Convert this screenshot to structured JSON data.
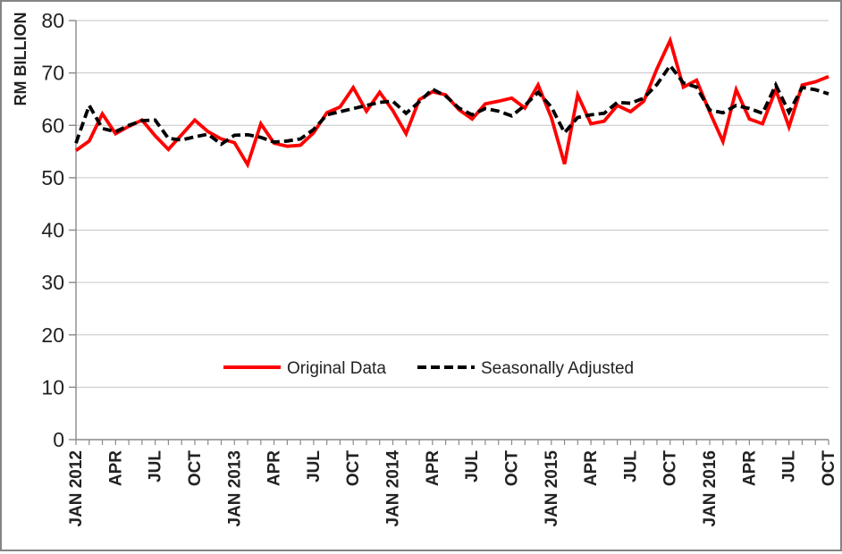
{
  "chart_data": {
    "type": "line",
    "title": "",
    "xlabel": "",
    "ylabel": "RM BILLION",
    "ylim": [
      0,
      80
    ],
    "ytick_interval": 10,
    "yticks": [
      0,
      10,
      20,
      30,
      40,
      50,
      60,
      70,
      80
    ],
    "grid": "horizontal-gridlines-on",
    "legend_position": "inside-bottom-center",
    "x_visible_tick_labels": [
      "JAN 2012",
      "APR",
      "JUL",
      "OCT",
      "JAN 2013",
      "APR",
      "JUL",
      "OCT",
      "JAN 2014",
      "APR",
      "JUL",
      "OCT",
      "JAN 2015",
      "APR",
      "JUL",
      "OCT",
      "JAN 2016",
      "APR",
      "JUL",
      "OCT"
    ],
    "x_label_every_n_months": 3,
    "categories": [
      "JAN 2012",
      "FEB 2012",
      "MAR 2012",
      "APR 2012",
      "MAY 2012",
      "JUN 2012",
      "JUL 2012",
      "AUG 2012",
      "SEP 2012",
      "OCT 2012",
      "NOV 2012",
      "DEC 2012",
      "JAN 2013",
      "FEB 2013",
      "MAR 2013",
      "APR 2013",
      "MAY 2013",
      "JUN 2013",
      "JUL 2013",
      "AUG 2013",
      "SEP 2013",
      "OCT 2013",
      "NOV 2013",
      "DEC 2013",
      "JAN 2014",
      "FEB 2014",
      "MAR 2014",
      "APR 2014",
      "MAY 2014",
      "JUN 2014",
      "JUL 2014",
      "AUG 2014",
      "SEP 2014",
      "OCT 2014",
      "NOV 2014",
      "DEC 2014",
      "JAN 2015",
      "FEB 2015",
      "MAR 2015",
      "APR 2015",
      "MAY 2015",
      "JUN 2015",
      "JUL 2015",
      "AUG 2015",
      "SEP 2015",
      "OCT 2015",
      "NOV 2015",
      "DEC 2015",
      "JAN 2016",
      "FEB 2016",
      "MAR 2016",
      "APR 2016",
      "MAY 2016",
      "JUN 2016",
      "JUL 2016",
      "AUG 2016",
      "SEP 2016",
      "OCT 2016"
    ],
    "series": [
      {
        "name": "Original Data",
        "color": "#FF0000",
        "style": "solid",
        "values": [
          55.2,
          57.0,
          62.2,
          58.4,
          59.8,
          61.0,
          58.0,
          55.4,
          58.2,
          61.0,
          58.8,
          57.4,
          56.7,
          52.5,
          60.3,
          56.6,
          56.0,
          56.2,
          58.6,
          62.4,
          63.5,
          67.2,
          62.7,
          66.3,
          62.8,
          58.4,
          64.9,
          66.4,
          65.8,
          63.0,
          61.2,
          64.1,
          64.6,
          65.2,
          63.3,
          67.7,
          61.5,
          52.6,
          65.8,
          60.3,
          60.8,
          63.8,
          62.6,
          64.6,
          70.8,
          76.2,
          67.3,
          68.6,
          62.5,
          56.9,
          66.8,
          61.2,
          60.3,
          66.8,
          59.7,
          67.7,
          68.3,
          69.3
        ]
      },
      {
        "name": "Seasonally Adjusted",
        "color": "#000000",
        "style": "dashed",
        "values": [
          56.6,
          63.8,
          59.4,
          58.8,
          60.0,
          60.9,
          61.0,
          57.5,
          57.2,
          57.8,
          58.3,
          56.4,
          58.1,
          58.2,
          57.7,
          56.8,
          57.0,
          57.4,
          59.2,
          62.0,
          62.6,
          63.2,
          63.8,
          64.4,
          64.6,
          62.3,
          64.5,
          66.9,
          65.6,
          63.3,
          62.0,
          63.2,
          62.7,
          61.8,
          63.8,
          66.3,
          63.5,
          58.6,
          61.5,
          62.0,
          62.3,
          64.4,
          64.2,
          65.2,
          67.8,
          71.4,
          68.1,
          67.3,
          62.9,
          62.4,
          63.8,
          63.2,
          62.3,
          67.7,
          62.5,
          67.2,
          66.8,
          66.0
        ]
      }
    ],
    "colors": {
      "gridline": "#C6C6C6",
      "axis": "#898989",
      "label": "#222222",
      "background": "#FFFFFF",
      "frame_border": "#848484"
    }
  }
}
